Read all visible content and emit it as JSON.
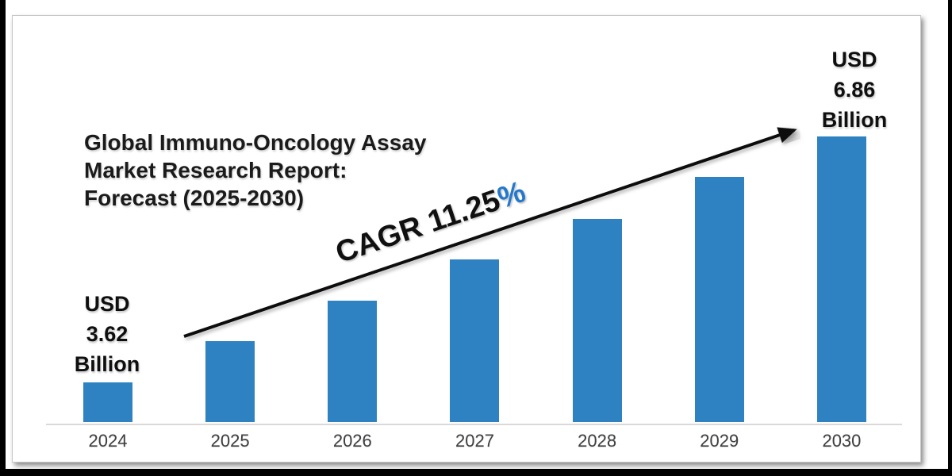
{
  "chart_data": {
    "type": "bar",
    "title": "Global Immuno-Oncology Assay Market Research Report: Forecast (2025-2030)",
    "title_lines": [
      "Global Immuno-Oncology Assay",
      "Market Research Report:",
      "Forecast (2025-2030)"
    ],
    "unit": "USD Billion",
    "categories": [
      "2024",
      "2025",
      "2026",
      "2027",
      "2028",
      "2029",
      "2030"
    ],
    "values": [
      3.62,
      4.03,
      4.48,
      4.98,
      5.54,
      6.17,
      6.86
    ],
    "labeled_values": {
      "2024": "USD 3.62 Billion",
      "2030": "USD 6.86 Billion"
    },
    "cagr_percent": 11.25,
    "bar_color": "#2e82c1",
    "axis_line_color": "#d9d9d9",
    "tick_label_color": "#3f3f3f",
    "legend": "none",
    "gridlines": "off",
    "y_axis": "hidden",
    "annotations": {
      "cagr": {
        "text": "CAGR 11.25",
        "suffix": "%",
        "suffix_color": "#2478cc"
      },
      "start": {
        "lines": [
          "USD",
          "3.62",
          "Billion"
        ]
      },
      "end": {
        "lines": [
          "USD",
          "6.86",
          "Billion"
        ]
      },
      "trend_arrow": "up-right"
    }
  }
}
